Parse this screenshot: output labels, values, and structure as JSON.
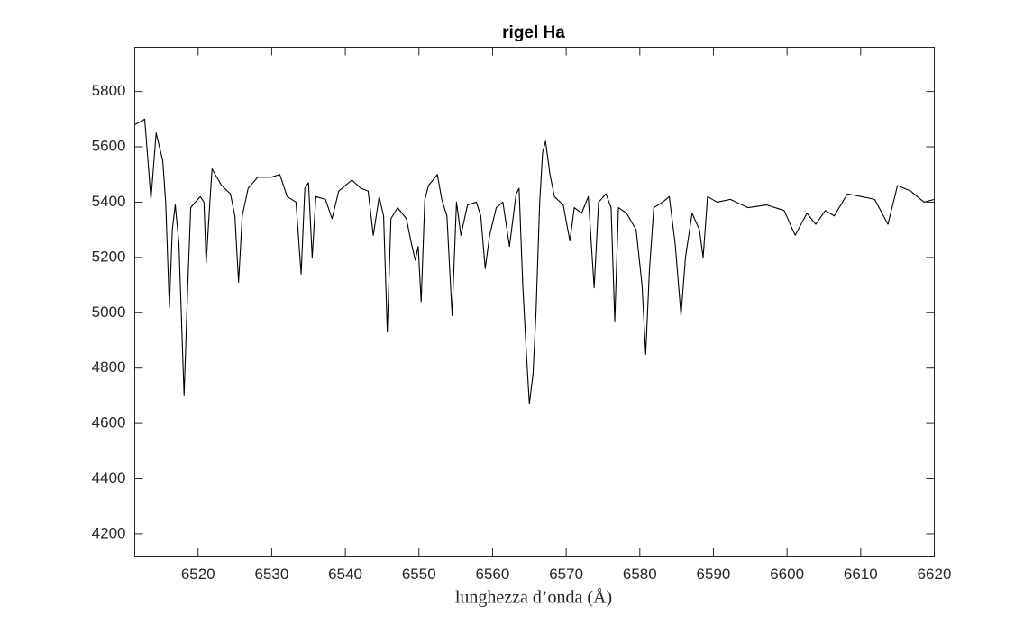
{
  "chart_data": {
    "type": "line",
    "title": "rigel Ha",
    "x_label": "lunghezza d’onda (Å)",
    "x": [
      6511.4,
      6512.75,
      6513.6,
      6514.3,
      6515.2,
      6515.6,
      6516.1,
      6516.5,
      6516.9,
      6517.4,
      6518.1,
      6518.6,
      6519,
      6519.6,
      6520.3,
      6520.8,
      6521.1,
      6521.6,
      6521.9,
      6523.2,
      6524.4,
      6525,
      6525.5,
      6526,
      6526.8,
      6528.1,
      6529.9,
      6531.1,
      6532.1,
      6533.3,
      6534,
      6534.5,
      6535,
      6535.5,
      6536,
      6537.3,
      6538.2,
      6539.1,
      6540.9,
      6542.1,
      6543.1,
      6543.8,
      6544.6,
      6545.2,
      6545.7,
      6546.2,
      6547.1,
      6548.3,
      6548.9,
      6549.5,
      6549.9,
      6550.3,
      6550.8,
      6551.3,
      6552.5,
      6553.1,
      6553.8,
      6554.5,
      6555.1,
      6555.7,
      6556.6,
      6557.8,
      6558.4,
      6559,
      6559.6,
      6560.5,
      6561.4,
      6562.3,
      6563.2,
      6563.6,
      6564.1,
      6564.6,
      6565,
      6565.5,
      6565.9,
      6566.4,
      6566.8,
      6567.2,
      6567.8,
      6568.4,
      6569.6,
      6570.5,
      6571.1,
      6572.1,
      6573,
      6573.8,
      6574.4,
      6575.4,
      6576.1,
      6576.6,
      6577.1,
      6578.2,
      6579.5,
      6580.3,
      6580.8,
      6581.3,
      6581.9,
      6583.1,
      6584,
      6584.8,
      6585.6,
      6586.2,
      6587.1,
      6588.1,
      6588.6,
      6589.2,
      6590.5,
      6592.3,
      6594.7,
      6597.2,
      6599.6,
      6601.1,
      6602.7,
      6603.9,
      6605.2,
      6606.4,
      6608.2,
      6610.1,
      6611.9,
      6613.7,
      6615,
      6616.8,
      6618.6,
      6620
    ],
    "series": [
      {
        "color": "#000000",
        "values": [
          5680,
          5700,
          5410,
          5650,
          5550,
          5400,
          5020,
          5300,
          5390,
          5250,
          4700,
          5100,
          5380,
          5400,
          5420,
          5400,
          5180,
          5400,
          5520,
          5460,
          5430,
          5350,
          5110,
          5350,
          5450,
          5490,
          5490,
          5500,
          5420,
          5400,
          5140,
          5450,
          5470,
          5200,
          5420,
          5410,
          5340,
          5440,
          5480,
          5450,
          5440,
          5280,
          5420,
          5350,
          4930,
          5340,
          5380,
          5340,
          5260,
          5190,
          5240,
          5040,
          5410,
          5460,
          5500,
          5410,
          5350,
          4990,
          5400,
          5280,
          5390,
          5400,
          5350,
          5160,
          5280,
          5380,
          5400,
          5240,
          5430,
          5450,
          5100,
          4850,
          4670,
          4780,
          5000,
          5400,
          5580,
          5620,
          5500,
          5420,
          5390,
          5260,
          5380,
          5360,
          5420,
          5090,
          5400,
          5430,
          5380,
          4970,
          5380,
          5360,
          5300,
          5100,
          4850,
          5150,
          5380,
          5400,
          5420,
          5250,
          4990,
          5200,
          5360,
          5300,
          5200,
          5420,
          5400,
          5410,
          5380,
          5390,
          5370,
          5280,
          5360,
          5320,
          5370,
          5350,
          5430,
          5420,
          5410,
          5320,
          5460,
          5440,
          5400,
          5410
        ]
      }
    ],
    "xlim": [
      6511.4,
      6620
    ],
    "ylim": [
      4120,
      5960
    ],
    "xticks": [
      6520,
      6530,
      6540,
      6550,
      6560,
      6570,
      6580,
      6590,
      6600,
      6610,
      6620
    ],
    "yticks": [
      4200,
      4400,
      4600,
      4800,
      5000,
      5200,
      5400,
      5600,
      5800
    ]
  }
}
